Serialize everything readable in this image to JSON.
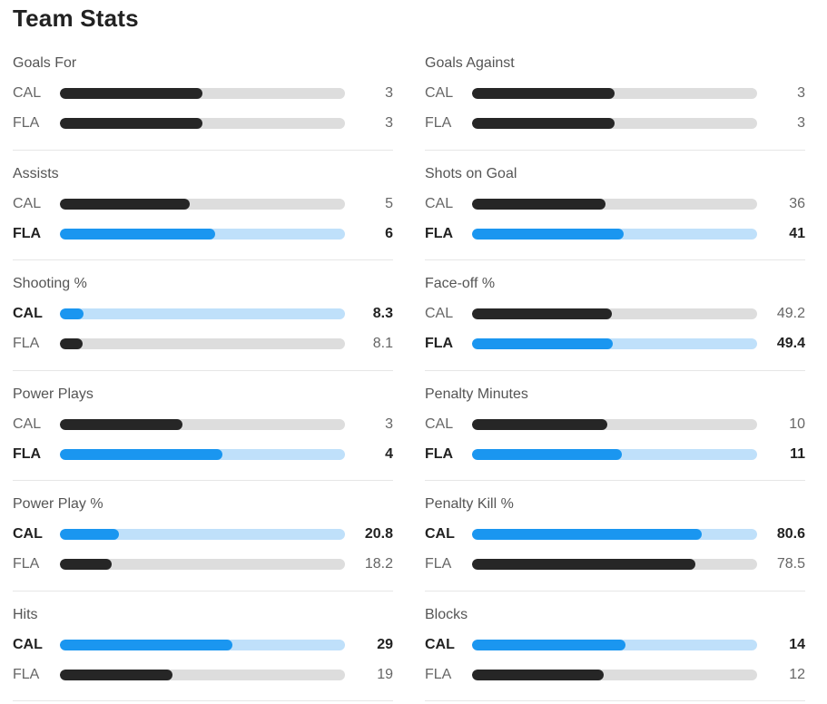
{
  "title": "Team Stats",
  "colors": {
    "leader_fill": "#1a96f0",
    "leader_track": "#bfe0fa",
    "default_fill": "#262626",
    "default_track": "#dddddd"
  },
  "stats": [
    {
      "label": "Goals For",
      "rows": [
        {
          "team": "CAL",
          "value": "3",
          "fill": 0.5,
          "leader": false
        },
        {
          "team": "FLA",
          "value": "3",
          "fill": 0.5,
          "leader": false
        }
      ]
    },
    {
      "label": "Goals Against",
      "rows": [
        {
          "team": "CAL",
          "value": "3",
          "fill": 0.5,
          "leader": false
        },
        {
          "team": "FLA",
          "value": "3",
          "fill": 0.5,
          "leader": false
        }
      ]
    },
    {
      "label": "Assists",
      "rows": [
        {
          "team": "CAL",
          "value": "5",
          "fill": 0.455,
          "leader": false
        },
        {
          "team": "FLA",
          "value": "6",
          "fill": 0.545,
          "leader": true
        }
      ]
    },
    {
      "label": "Shots on Goal",
      "rows": [
        {
          "team": "CAL",
          "value": "36",
          "fill": 0.468,
          "leader": false
        },
        {
          "team": "FLA",
          "value": "41",
          "fill": 0.532,
          "leader": true
        }
      ]
    },
    {
      "label": "Shooting %",
      "rows": [
        {
          "team": "CAL",
          "value": "8.3",
          "fill": 0.083,
          "leader": true
        },
        {
          "team": "FLA",
          "value": "8.1",
          "fill": 0.081,
          "leader": false
        }
      ]
    },
    {
      "label": "Face-off %",
      "rows": [
        {
          "team": "CAL",
          "value": "49.2",
          "fill": 0.492,
          "leader": false
        },
        {
          "team": "FLA",
          "value": "49.4",
          "fill": 0.494,
          "leader": true
        }
      ]
    },
    {
      "label": "Power Plays",
      "rows": [
        {
          "team": "CAL",
          "value": "3",
          "fill": 0.429,
          "leader": false
        },
        {
          "team": "FLA",
          "value": "4",
          "fill": 0.571,
          "leader": true
        }
      ]
    },
    {
      "label": "Penalty Minutes",
      "rows": [
        {
          "team": "CAL",
          "value": "10",
          "fill": 0.476,
          "leader": false
        },
        {
          "team": "FLA",
          "value": "11",
          "fill": 0.524,
          "leader": true
        }
      ]
    },
    {
      "label": "Power Play %",
      "rows": [
        {
          "team": "CAL",
          "value": "20.8",
          "fill": 0.208,
          "leader": true
        },
        {
          "team": "FLA",
          "value": "18.2",
          "fill": 0.182,
          "leader": false
        }
      ]
    },
    {
      "label": "Penalty Kill %",
      "rows": [
        {
          "team": "CAL",
          "value": "80.6",
          "fill": 0.806,
          "leader": true
        },
        {
          "team": "FLA",
          "value": "78.5",
          "fill": 0.785,
          "leader": false
        }
      ]
    },
    {
      "label": "Hits",
      "rows": [
        {
          "team": "CAL",
          "value": "29",
          "fill": 0.604,
          "leader": true
        },
        {
          "team": "FLA",
          "value": "19",
          "fill": 0.396,
          "leader": false
        }
      ]
    },
    {
      "label": "Blocks",
      "rows": [
        {
          "team": "CAL",
          "value": "14",
          "fill": 0.538,
          "leader": true
        },
        {
          "team": "FLA",
          "value": "12",
          "fill": 0.462,
          "leader": false
        }
      ]
    }
  ]
}
